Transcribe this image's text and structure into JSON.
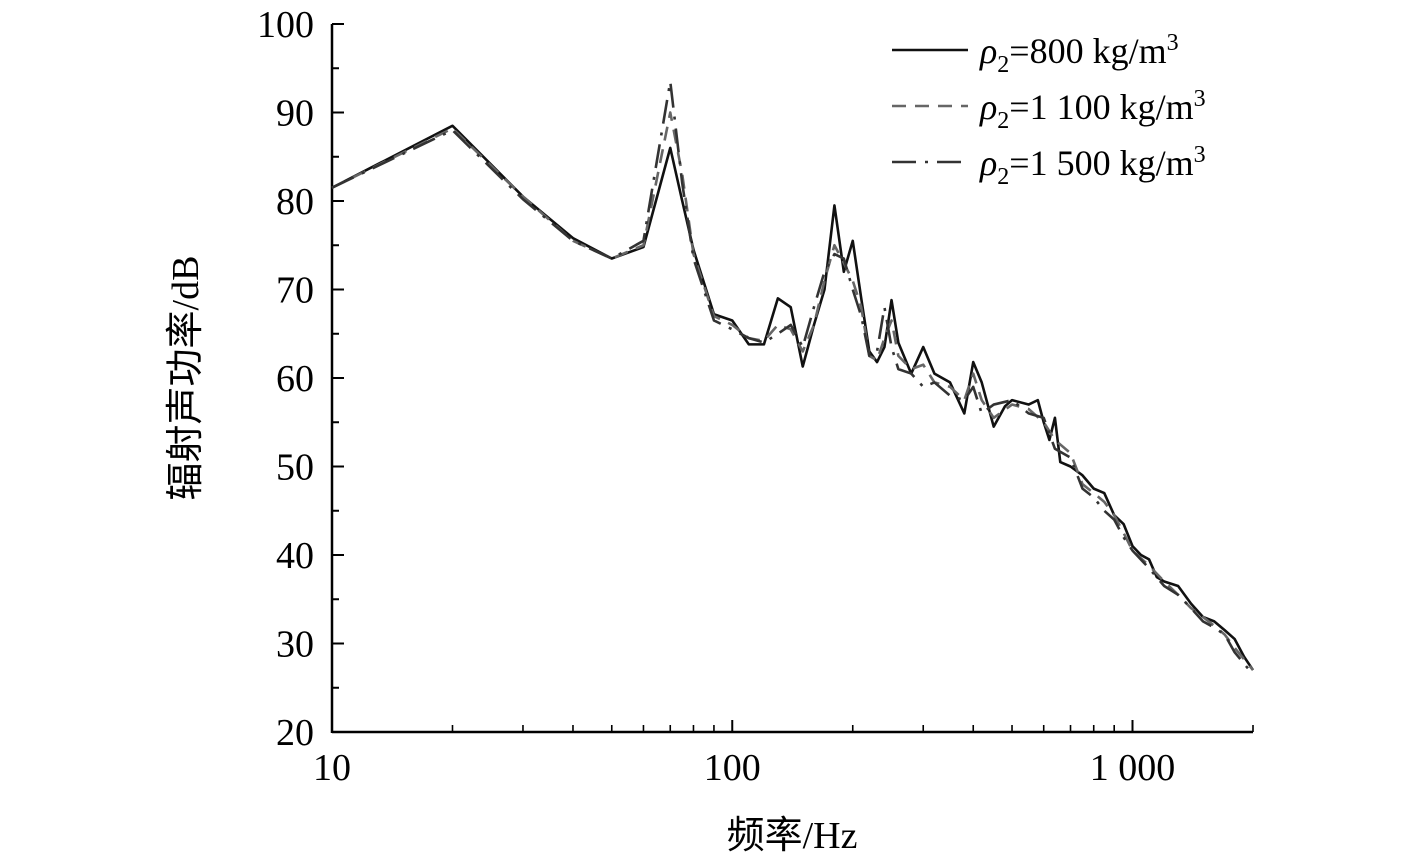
{
  "chart_data": {
    "type": "line",
    "title": "",
    "xlabel": "频率/Hz",
    "ylabel": "辐射声功率/dB",
    "xscale": "log",
    "xlim": [
      10,
      2000
    ],
    "ylim": [
      20,
      100
    ],
    "x_ticks": [
      {
        "value": 10,
        "label": "10"
      },
      {
        "value": 100,
        "label": "100"
      },
      {
        "value": 1000,
        "label": "1 000"
      }
    ],
    "y_ticks": [
      {
        "value": 20,
        "label": "20"
      },
      {
        "value": 30,
        "label": "30"
      },
      {
        "value": 40,
        "label": "40"
      },
      {
        "value": 50,
        "label": "50"
      },
      {
        "value": 60,
        "label": "60"
      },
      {
        "value": 70,
        "label": "70"
      },
      {
        "value": 80,
        "label": "80"
      },
      {
        "value": 90,
        "label": "90"
      },
      {
        "value": 100,
        "label": "100"
      }
    ],
    "legend_position": "top-right",
    "grid": false,
    "series": [
      {
        "name_prefix": "ρ",
        "name_sub": "2",
        "name_rest": "=800 kg/m",
        "name_sup": "3",
        "style": "solid",
        "color": "#111111",
        "points": [
          [
            10,
            81.5
          ],
          [
            20,
            88.5
          ],
          [
            30,
            80.5
          ],
          [
            40,
            75.8
          ],
          [
            50,
            73.5
          ],
          [
            60,
            74.8
          ],
          [
            70,
            86
          ],
          [
            75,
            80
          ],
          [
            80,
            74.5
          ],
          [
            90,
            67.2
          ],
          [
            100,
            66.5
          ],
          [
            110,
            63.8
          ],
          [
            120,
            63.8
          ],
          [
            130,
            69
          ],
          [
            140,
            68
          ],
          [
            150,
            61.3
          ],
          [
            160,
            66
          ],
          [
            170,
            70
          ],
          [
            180,
            79.5
          ],
          [
            190,
            72
          ],
          [
            200,
            75.5
          ],
          [
            210,
            69
          ],
          [
            220,
            63
          ],
          [
            230,
            61.8
          ],
          [
            240,
            63.5
          ],
          [
            250,
            68.8
          ],
          [
            260,
            64
          ],
          [
            280,
            60.5
          ],
          [
            300,
            63.5
          ],
          [
            320,
            60.5
          ],
          [
            350,
            59.5
          ],
          [
            380,
            56
          ],
          [
            400,
            61.8
          ],
          [
            420,
            59.5
          ],
          [
            450,
            54.5
          ],
          [
            480,
            56.8
          ],
          [
            500,
            57.5
          ],
          [
            550,
            57
          ],
          [
            580,
            57.5
          ],
          [
            600,
            55
          ],
          [
            620,
            53
          ],
          [
            640,
            55.5
          ],
          [
            660,
            50.5
          ],
          [
            700,
            50
          ],
          [
            750,
            49
          ],
          [
            800,
            47.5
          ],
          [
            850,
            47
          ],
          [
            900,
            44.5
          ],
          [
            950,
            43.5
          ],
          [
            1000,
            41
          ],
          [
            1050,
            40
          ],
          [
            1100,
            39.5
          ],
          [
            1150,
            37.5
          ],
          [
            1200,
            37
          ],
          [
            1300,
            36.5
          ],
          [
            1400,
            34.5
          ],
          [
            1500,
            33
          ],
          [
            1600,
            32.5
          ],
          [
            1700,
            31.5
          ],
          [
            1800,
            30.5
          ],
          [
            1900,
            28.5
          ],
          [
            2000,
            27
          ]
        ]
      },
      {
        "name_prefix": "ρ",
        "name_sub": "2",
        "name_rest": "=1 100 kg/m",
        "name_sup": "3",
        "style": "dashed",
        "color": "#666666",
        "points": [
          [
            10,
            81.5
          ],
          [
            20,
            88.2
          ],
          [
            30,
            80.5
          ],
          [
            40,
            75.5
          ],
          [
            50,
            73.5
          ],
          [
            60,
            75
          ],
          [
            70,
            90
          ],
          [
            75,
            83
          ],
          [
            80,
            74
          ],
          [
            90,
            67
          ],
          [
            100,
            66
          ],
          [
            110,
            64.5
          ],
          [
            120,
            64.2
          ],
          [
            130,
            66
          ],
          [
            140,
            65.5
          ],
          [
            150,
            63
          ],
          [
            160,
            66
          ],
          [
            170,
            71
          ],
          [
            180,
            75
          ],
          [
            190,
            73
          ],
          [
            200,
            71
          ],
          [
            210,
            68
          ],
          [
            220,
            62.5
          ],
          [
            230,
            62
          ],
          [
            240,
            64.5
          ],
          [
            250,
            66.5
          ],
          [
            260,
            62.5
          ],
          [
            280,
            61
          ],
          [
            300,
            61.5
          ],
          [
            320,
            59.5
          ],
          [
            350,
            59
          ],
          [
            380,
            57.5
          ],
          [
            400,
            60.5
          ],
          [
            420,
            57.5
          ],
          [
            450,
            55.5
          ],
          [
            500,
            57
          ],
          [
            550,
            56.5
          ],
          [
            600,
            55
          ],
          [
            640,
            53
          ],
          [
            700,
            51.5
          ],
          [
            750,
            48
          ],
          [
            800,
            47
          ],
          [
            850,
            46
          ],
          [
            900,
            44.5
          ],
          [
            950,
            42.5
          ],
          [
            1000,
            40.5
          ],
          [
            1100,
            38.8
          ],
          [
            1200,
            37
          ],
          [
            1300,
            35.5
          ],
          [
            1400,
            34
          ],
          [
            1500,
            33
          ],
          [
            1600,
            32
          ],
          [
            1700,
            31
          ],
          [
            1800,
            29.5
          ],
          [
            2000,
            27
          ]
        ]
      },
      {
        "name_prefix": "ρ",
        "name_sub": "2",
        "name_rest": "=1 500 kg/m",
        "name_sup": "3",
        "style": "dashdot",
        "color": "#333333",
        "points": [
          [
            10,
            81.5
          ],
          [
            20,
            88
          ],
          [
            30,
            80.2
          ],
          [
            40,
            75.5
          ],
          [
            50,
            73.5
          ],
          [
            60,
            75.5
          ],
          [
            70,
            93.5
          ],
          [
            75,
            82
          ],
          [
            80,
            73.5
          ],
          [
            90,
            66.5
          ],
          [
            100,
            65.5
          ],
          [
            110,
            64.5
          ],
          [
            120,
            64
          ],
          [
            130,
            65
          ],
          [
            140,
            66
          ],
          [
            150,
            63.5
          ],
          [
            160,
            68
          ],
          [
            170,
            72
          ],
          [
            180,
            74
          ],
          [
            190,
            73.5
          ],
          [
            200,
            70
          ],
          [
            210,
            67
          ],
          [
            220,
            62.5
          ],
          [
            230,
            63
          ],
          [
            240,
            68
          ],
          [
            250,
            63.5
          ],
          [
            260,
            61
          ],
          [
            280,
            60.5
          ],
          [
            300,
            59
          ],
          [
            320,
            59.5
          ],
          [
            350,
            58
          ],
          [
            380,
            57.5
          ],
          [
            400,
            59
          ],
          [
            420,
            56
          ],
          [
            450,
            57
          ],
          [
            500,
            57.5
          ],
          [
            550,
            56
          ],
          [
            600,
            55.5
          ],
          [
            640,
            52
          ],
          [
            700,
            51
          ],
          [
            750,
            47.5
          ],
          [
            800,
            46.5
          ],
          [
            850,
            45
          ],
          [
            900,
            44
          ],
          [
            950,
            42
          ],
          [
            1000,
            40.5
          ],
          [
            1100,
            38.5
          ],
          [
            1200,
            36.5
          ],
          [
            1300,
            35.5
          ],
          [
            1400,
            34
          ],
          [
            1500,
            32.5
          ],
          [
            1600,
            31.8
          ],
          [
            1700,
            31
          ],
          [
            1800,
            29
          ],
          [
            2000,
            26.5
          ]
        ]
      }
    ]
  }
}
